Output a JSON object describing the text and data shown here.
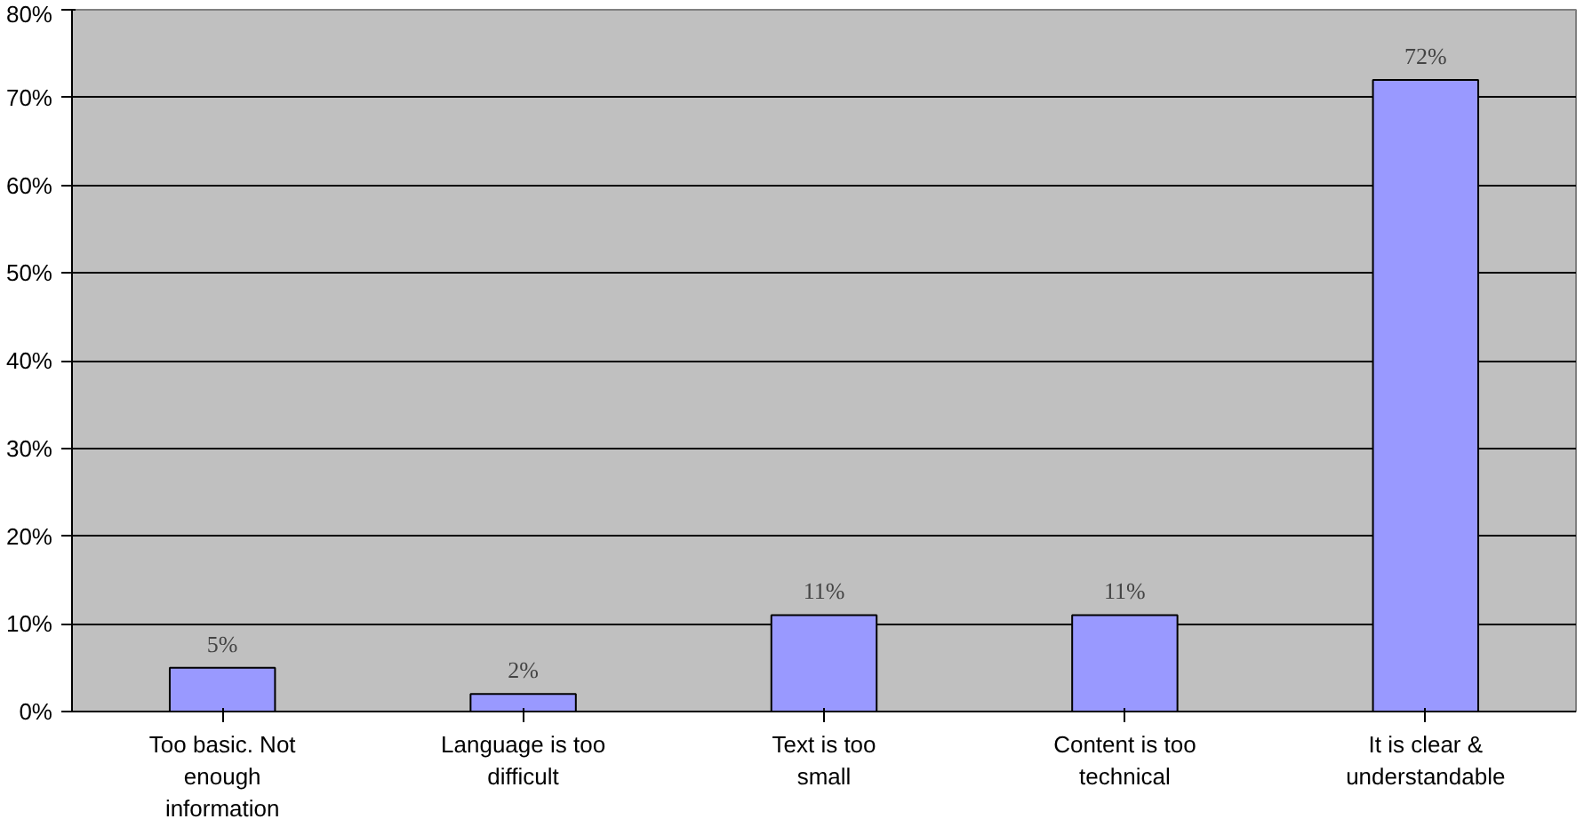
{
  "chart_data": {
    "type": "bar",
    "categories": [
      "Too basic. Not enough information",
      "Language is too difficult",
      "Text is too small",
      "Content is too technical",
      "It is clear & understandable"
    ],
    "values": [
      5,
      2,
      11,
      11,
      72
    ],
    "value_labels": [
      "5%",
      "2%",
      "11%",
      "11%",
      "72%"
    ],
    "color": "#9999ff",
    "ylim": [
      0,
      80
    ],
    "yticks": [
      {
        "value": 0,
        "label": "0%"
      },
      {
        "value": 10,
        "label": "10%"
      },
      {
        "value": 20,
        "label": "20%"
      },
      {
        "value": 30,
        "label": "30%"
      },
      {
        "value": 40,
        "label": "40%"
      },
      {
        "value": 50,
        "label": "50%"
      },
      {
        "value": 60,
        "label": "60%"
      },
      {
        "value": 70,
        "label": "70%"
      },
      {
        "value": 80,
        "label": "80%"
      }
    ],
    "grid": "y"
  }
}
